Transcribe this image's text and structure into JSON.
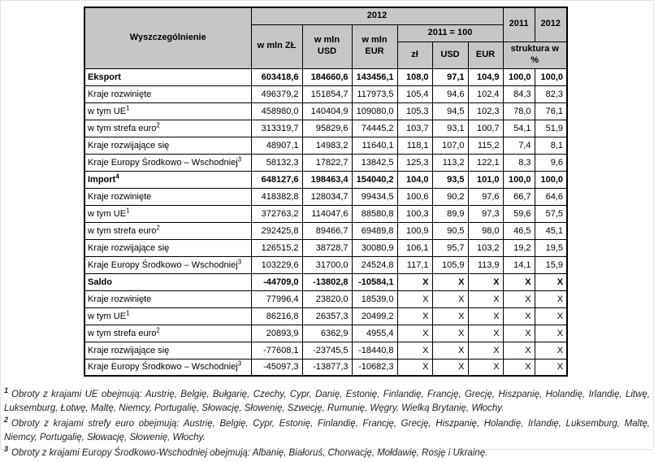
{
  "table": {
    "header": {
      "specification": "Wyszczególnienie",
      "year_group_2012": "2012",
      "mln_zl": "w mln ZŁ",
      "mln_usd": "w mln\nUSD",
      "mln_eur": "w mln\nEUR",
      "index_group": "2011 = 100",
      "idx_zl": "zł",
      "idx_usd": "USD",
      "idx_eur": "EUR",
      "col_2011": "2011",
      "col_2012": "2012",
      "structure": "struktura w\n%"
    },
    "rows": [
      {
        "label": "Eksport",
        "sup": "",
        "bold": true,
        "values": [
          "603418,6",
          "184660,6",
          "143456,1",
          "108,0",
          "97,1",
          "104,9",
          "100,0",
          "100,0"
        ]
      },
      {
        "label": "Kraje rozwinięte",
        "sup": "",
        "bold": false,
        "values": [
          "496379,2",
          "151854,7",
          "117973,5",
          "105,4",
          "94,6",
          "102,4",
          "84,3",
          "82,3"
        ]
      },
      {
        "label": "w tym UE",
        "sup": "1",
        "bold": false,
        "values": [
          "458980,0",
          "140404,9",
          "109080,0",
          "105,3",
          "94,5",
          "102,3",
          "78,0",
          "76,1"
        ]
      },
      {
        "label": "w tym strefa euro",
        "sup": "2",
        "bold": false,
        "values": [
          "313319,7",
          "95829,6",
          "74445,2",
          "103,7",
          "93,1",
          "100,7",
          "54,1",
          "51,9"
        ]
      },
      {
        "label": "Kraje rozwijające się",
        "sup": "",
        "bold": false,
        "values": [
          "48907,1",
          "14983,2",
          "11640,1",
          "118,1",
          "107,0",
          "115,2",
          "7,4",
          "8,1"
        ]
      },
      {
        "label": "Kraje Europy Środkowo – Wschodniej",
        "sup": "3",
        "bold": false,
        "values": [
          "58132,3",
          "17822,7",
          "13842,5",
          "125,3",
          "113,2",
          "122,1",
          "8,3",
          "9,6"
        ]
      },
      {
        "label": "Import",
        "sup": "4",
        "bold": true,
        "values": [
          "648127,6",
          "198463,4",
          "154040,2",
          "104,0",
          "93,5",
          "101,0",
          "100,0",
          "100,0"
        ]
      },
      {
        "label": "Kraje rozwinięte",
        "sup": "",
        "bold": false,
        "values": [
          "418382,8",
          "128034,7",
          "99434,5",
          "100,6",
          "90,2",
          "97,6",
          "66,7",
          "64,6"
        ]
      },
      {
        "label": "w tym UE",
        "sup": "1",
        "bold": false,
        "values": [
          "372763,2",
          "114047,6",
          "88580,8",
          "100,3",
          "89,9",
          "97,3",
          "59,6",
          "57,5"
        ]
      },
      {
        "label": "w tym strefa euro",
        "sup": "2",
        "bold": false,
        "values": [
          "292425,8",
          "89466,7",
          "69489,8",
          "100,9",
          "90,5",
          "98,0",
          "46,5",
          "45,1"
        ]
      },
      {
        "label": "Kraje rozwijające się",
        "sup": "",
        "bold": false,
        "values": [
          "126515,2",
          "38728,7",
          "30080,9",
          "106,1",
          "95,7",
          "103,2",
          "19,2",
          "19,5"
        ]
      },
      {
        "label": "Kraje Europy Środkowo – Wschodniej",
        "sup": "3",
        "bold": false,
        "values": [
          "103229,6",
          "31700,0",
          "24524,8",
          "117,1",
          "105,9",
          "113,9",
          "14,1",
          "15,9"
        ]
      },
      {
        "label": "Saldo",
        "sup": "",
        "bold": true,
        "values": [
          "-44709,0",
          "-13802,8",
          "-10584,1",
          "X",
          "X",
          "X",
          "X",
          "X"
        ]
      },
      {
        "label": "Kraje rozwinięte",
        "sup": "",
        "bold": false,
        "values": [
          "77996,4",
          "23820,0",
          "18539,0",
          "X",
          "X",
          "X",
          "X",
          "X"
        ]
      },
      {
        "label": "w tym UE",
        "sup": "1",
        "bold": false,
        "values": [
          "86216,8",
          "26357,3",
          "20499,2",
          "X",
          "X",
          "X",
          "X",
          "X"
        ]
      },
      {
        "label": "w tym strefa euro",
        "sup": "2",
        "bold": false,
        "values": [
          "20893,9",
          "6362,9",
          "4955,4",
          "X",
          "X",
          "X",
          "X",
          "X"
        ]
      },
      {
        "label": "Kraje rozwijające się",
        "sup": "",
        "bold": false,
        "values": [
          "-77608,1",
          "-23745,5",
          "-18440,8",
          "X",
          "X",
          "X",
          "X",
          "X"
        ]
      },
      {
        "label": "Kraje Europy Środkowo – Wschodniej",
        "sup": "3",
        "bold": false,
        "values": [
          "-45097,3",
          "-13877,3",
          "-10682,3",
          "X",
          "X",
          "X",
          "X",
          "X"
        ]
      }
    ]
  },
  "footnotes": [
    {
      "marker": "1",
      "text": "Obroty z krajami UE obejmują: Austrię, Belgię, Bułgarię, Czechy, Cypr, Danię, Estonię, Finlandię, Francję, Grecję, Hiszpanię, Holandię, Irlandię, Litwę, Luksemburg, Łotwę, Maltę, Niemcy, Portugalię, Słowację, Słowenię, Szwecję, Rumunię, Węgry, Wielką Brytanię, Włochy."
    },
    {
      "marker": "2",
      "text": "Obroty z krajami strefy euro obejmują: Austrię, Belgię, Cypr, Estonię, Finlandię, Francję, Grecję, Hiszpanię, Holandię, Irlandię, Luksemburg, Maltę, Niemcy, Portugalię, Słowację, Słowenię, Włochy."
    },
    {
      "marker": "3",
      "text": "Obroty z krajami Europy Środkowo-Wschodniej obejmują: Albanię, Białoruś, Chorwację, Mołdawię, Rosję i Ukrainę."
    }
  ],
  "colors": {
    "header_bg": "#c6c6c6",
    "border": "#000000",
    "footnote_text": "#20202a"
  }
}
